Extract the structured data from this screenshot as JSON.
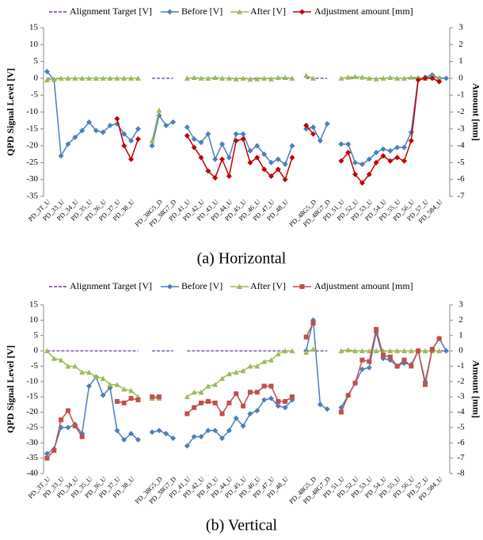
{
  "chart_data": [
    {
      "type": "line",
      "caption": "(a) Horizontal",
      "y_label": "QPD Signal Level [V]",
      "y2_label": "Amount [mm]",
      "categories": [
        "PD_3T_U",
        null,
        "PD_33_U",
        null,
        "PD_34_U",
        null,
        "PD_35_U",
        null,
        "PD_36_U",
        null,
        "PD_37_U",
        null,
        "PD_38_U",
        null,
        null,
        null,
        "PD_38G5_D",
        null,
        "PD_38G7_D",
        null,
        "PD_41_U",
        null,
        "PD_42_U",
        null,
        "PD_43_U",
        null,
        "PD_44_U",
        null,
        "PD_45_U",
        null,
        "PD_46_U",
        null,
        "PD_47_U",
        null,
        "PD_48_U",
        null,
        null,
        null,
        "PD_48G5_D",
        null,
        "PD_48G7_D",
        null,
        "PD_51_U",
        null,
        "PD_52_U",
        null,
        "PD_53_U",
        null,
        "PD_54_U",
        null,
        "PD_55_U",
        null,
        "PD_56_U",
        null,
        "PD_57_U",
        null,
        "PD_584_U",
        null
      ],
      "ylim": [
        -35,
        15
      ],
      "yticks": [
        -35,
        -30,
        -25,
        -20,
        -15,
        -10,
        -5,
        0,
        5,
        10,
        15
      ],
      "y2lim": [
        -7,
        3
      ],
      "y2ticks": [
        -7,
        -6,
        -5,
        -4,
        -3,
        -2,
        -1,
        0,
        1,
        2,
        3
      ],
      "series": [
        {
          "name": "Alignment Target [V]",
          "color": "#7030a0",
          "dash": true,
          "marker": "none",
          "values": [
            0,
            0,
            0,
            0,
            0,
            0,
            0,
            0,
            0,
            0,
            0,
            0,
            0,
            0,
            null,
            0,
            0,
            0,
            0,
            null,
            0,
            0,
            0,
            0,
            0,
            0,
            0,
            0,
            0,
            0,
            0,
            0,
            0,
            0,
            0,
            0,
            null,
            0,
            0,
            0,
            0,
            null,
            0,
            0,
            0,
            0,
            0,
            0,
            0,
            0,
            0,
            0,
            0,
            0,
            0,
            0,
            0,
            0
          ]
        },
        {
          "name": "Before [V]",
          "color": "#4a7ebb",
          "marker": "diamond",
          "values": [
            2,
            -0.5,
            -23,
            -19.5,
            -17.5,
            -15.5,
            -13,
            -15.5,
            -16,
            -14,
            -13.5,
            -16.5,
            -18.5,
            -15,
            null,
            -20,
            -11,
            -14,
            -13,
            null,
            -14.5,
            -18,
            -19,
            -16.5,
            -24,
            -19.5,
            -23.5,
            -16.5,
            -16.5,
            -21.5,
            -20,
            -22.5,
            -25,
            -24,
            -25.5,
            -20,
            null,
            -15,
            -14.5,
            -18.5,
            -13.5,
            null,
            -19.5,
            -19.5,
            -25,
            -25.5,
            -24,
            -22,
            -21,
            -21.5,
            -20.5,
            -20.5,
            -16,
            0,
            0.3,
            1,
            0,
            0
          ]
        },
        {
          "name": "After [V]",
          "color": "#9bbb59",
          "marker": "triangle",
          "values": [
            -0.5,
            -0.3,
            0,
            0,
            0,
            0,
            0,
            0,
            0,
            0,
            0,
            0,
            0,
            0,
            null,
            -18.5,
            -9.5,
            null,
            null,
            null,
            0,
            0.2,
            0,
            0,
            0.2,
            0,
            0,
            -0.2,
            0,
            -0.3,
            -0.2,
            0,
            -0.2,
            0.2,
            0.2,
            0,
            null,
            0.8,
            0,
            null,
            null,
            null,
            0,
            0.3,
            0.5,
            0.3,
            0,
            -0.2,
            0,
            0.2,
            0,
            0,
            0.3,
            0.2,
            0,
            0.5,
            0,
            null
          ]
        },
        {
          "name": "Adjustment amount [mm]",
          "color": "#c00000",
          "marker": "diamond",
          "axis": "y2",
          "values": [
            null,
            null,
            null,
            null,
            null,
            null,
            null,
            null,
            null,
            null,
            -2.4,
            -4,
            -4.8,
            -3.6,
            null,
            null,
            null,
            null,
            null,
            null,
            -3.4,
            -4.1,
            -4.7,
            -5.5,
            -5.9,
            -4.8,
            -5.8,
            -3.7,
            -3.6,
            -5,
            -4.7,
            -5.4,
            -5.8,
            -5.4,
            -6,
            -4.7,
            null,
            -2.8,
            -3.3,
            null,
            null,
            null,
            -4.9,
            -4.4,
            -5.7,
            -6.2,
            -5.7,
            -5,
            -4.6,
            -4.9,
            -4.7,
            -4.9,
            -3.7,
            -0.1,
            0,
            0,
            -0.2,
            null
          ]
        }
      ]
    },
    {
      "type": "line",
      "caption": "(b) Vertical",
      "y_label": "QPD Signal Level [V]",
      "y2_label": "Amount [mm]",
      "categories": [
        "PD_3T_U",
        null,
        "PD_33_U",
        null,
        "PD_34_U",
        null,
        "PD_35_U",
        null,
        "PD_36_U",
        null,
        "PD_37_U",
        null,
        "PD_38_U",
        null,
        null,
        null,
        "PD_38G5_D",
        null,
        "PD_38G7_D",
        null,
        "PD_41_U",
        null,
        "PD_42_U",
        null,
        "PD_43_U",
        null,
        "PD_44_U",
        null,
        "PD_45_U",
        null,
        "PD_46_U",
        null,
        "PD_47_U",
        null,
        "PD_48_U",
        null,
        null,
        null,
        "PD_48G5_D",
        null,
        "PD_48G7_D",
        null,
        "PD_51_U",
        null,
        "PD_52_U",
        null,
        "PD_53_U",
        null,
        "PD_54_U",
        null,
        "PD_55_U",
        null,
        "PD_56_U",
        null,
        "PD_57_U",
        null,
        "PD_584_U",
        null
      ],
      "ylim": [
        -40,
        15
      ],
      "yticks": [
        -40,
        -35,
        -30,
        -25,
        -20,
        -15,
        -10,
        -5,
        0,
        5,
        10,
        15
      ],
      "y2lim": [
        -8,
        3
      ],
      "y2ticks": [
        -8,
        -7,
        -6,
        -5,
        -4,
        -3,
        -2,
        -1,
        0,
        1,
        2,
        3
      ],
      "series": [
        {
          "name": "Alignment Target [V]",
          "color": "#7030a0",
          "dash": true,
          "marker": "none",
          "values": [
            0,
            0,
            0,
            0,
            0,
            0,
            0,
            0,
            0,
            0,
            0,
            0,
            0,
            0,
            null,
            0,
            0,
            0,
            0,
            null,
            0,
            0,
            0,
            0,
            0,
            0,
            0,
            0,
            0,
            0,
            0,
            0,
            0,
            0,
            0,
            0,
            null,
            0,
            0,
            0,
            0,
            null,
            0,
            0,
            0,
            0,
            0,
            0,
            0,
            0,
            0,
            0,
            0,
            0,
            0,
            0,
            0,
            0
          ]
        },
        {
          "name": "Before [V]",
          "color": "#4a7ebb",
          "marker": "diamond",
          "values": [
            -33.5,
            -32,
            -25,
            -25,
            -24,
            -27,
            -11.5,
            -8.5,
            -14.5,
            -12,
            -26,
            -29,
            -27,
            -29,
            null,
            -26.5,
            -26,
            -27,
            -28.5,
            null,
            -31,
            -28,
            -28,
            -26,
            -26,
            -28.5,
            -26,
            -22,
            -24.5,
            -20.5,
            -19.5,
            -16,
            -15.5,
            -18,
            -18.5,
            -16,
            null,
            0,
            10,
            -17.5,
            -19,
            null,
            -18.5,
            -14.5,
            -10.5,
            -6,
            -5.5,
            6,
            -2.5,
            -3,
            -5,
            -4,
            -4.5,
            0,
            -10,
            0.5,
            4,
            0
          ]
        },
        {
          "name": "After [V]",
          "color": "#9bbb59",
          "marker": "triangle",
          "values": [
            0,
            -2.5,
            -3,
            -5,
            -5,
            -7,
            -7,
            -8.5,
            -9,
            -11,
            -11,
            -12.5,
            -13,
            -15,
            null,
            -15.5,
            -15.5,
            null,
            null,
            null,
            -15,
            -13.5,
            -13.5,
            -11.5,
            -11,
            -9,
            -7.5,
            -7,
            -6.5,
            -5,
            -5,
            -3.5,
            -3,
            -1,
            0,
            0,
            null,
            -0.5,
            0.5,
            null,
            null,
            null,
            0,
            0.3,
            0,
            0,
            0,
            0,
            0,
            0,
            0,
            0,
            0,
            0,
            0,
            0,
            0,
            null
          ]
        },
        {
          "name": "Adjustment amount [mm]",
          "color": "#c0504d",
          "marker": "square",
          "axis": "y2",
          "values": [
            -7,
            -6.5,
            -4.5,
            -3.9,
            -4.9,
            -5.6,
            null,
            null,
            null,
            null,
            -3.3,
            -3.4,
            -3.1,
            -3.2,
            null,
            -3,
            -3,
            null,
            null,
            null,
            -4.1,
            -3.7,
            -3.4,
            -3.3,
            -3.4,
            -4.1,
            -3.4,
            -2.8,
            -3.6,
            -2.7,
            -2.7,
            -2.3,
            -2.3,
            -3.3,
            -3.3,
            -3,
            null,
            0.9,
            1.8,
            null,
            null,
            null,
            -4,
            -2.9,
            -2.1,
            -0.6,
            -0.7,
            1.4,
            -0.3,
            -0.4,
            -1,
            -0.6,
            -1,
            0,
            -2.2,
            0.1,
            0.8,
            null
          ]
        }
      ]
    }
  ]
}
